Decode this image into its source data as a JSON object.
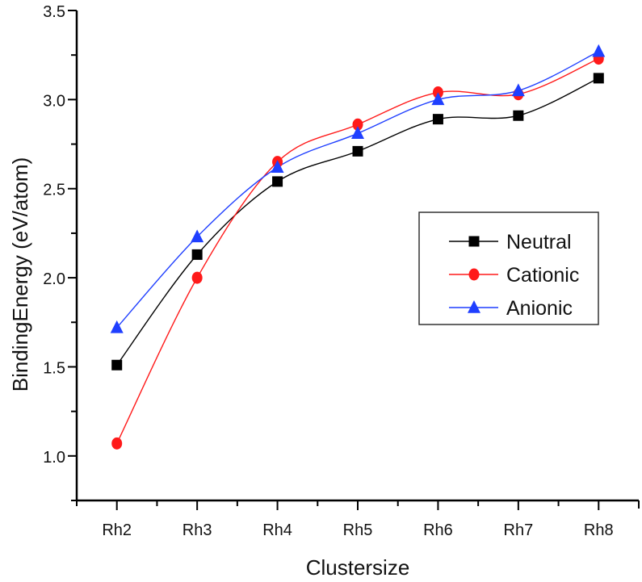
{
  "chart_data": {
    "type": "line",
    "title": "",
    "xlabel": "Clustersize",
    "ylabel": "BindingEnergy (eV/atom)",
    "categories": [
      "Rh2",
      "Rh3",
      "Rh4",
      "Rh5",
      "Rh6",
      "Rh7",
      "Rh8"
    ],
    "ylim": [
      0.75,
      3.5
    ],
    "yticks": [
      1.0,
      1.5,
      2.0,
      2.5,
      3.0,
      3.5
    ],
    "ytick_labels": [
      "1.0",
      "1.5",
      "2.0",
      "2.5",
      "3.0",
      "3.5"
    ],
    "y_minor_step": 0.25,
    "grid": false,
    "legend_position": "center-right",
    "smooth": true,
    "series": [
      {
        "name": "Neutral",
        "color": "#000000",
        "marker": "square",
        "values": [
          1.51,
          2.13,
          2.54,
          2.71,
          2.89,
          2.91,
          3.12
        ]
      },
      {
        "name": "Cationic",
        "color": "#ff1a1a",
        "marker": "circle",
        "values": [
          1.07,
          2.0,
          2.65,
          2.86,
          3.04,
          3.03,
          3.23
        ]
      },
      {
        "name": "Anionic",
        "color": "#1f3fff",
        "marker": "triangle",
        "values": [
          1.72,
          2.23,
          2.62,
          2.81,
          3.0,
          3.05,
          3.27
        ]
      }
    ]
  }
}
